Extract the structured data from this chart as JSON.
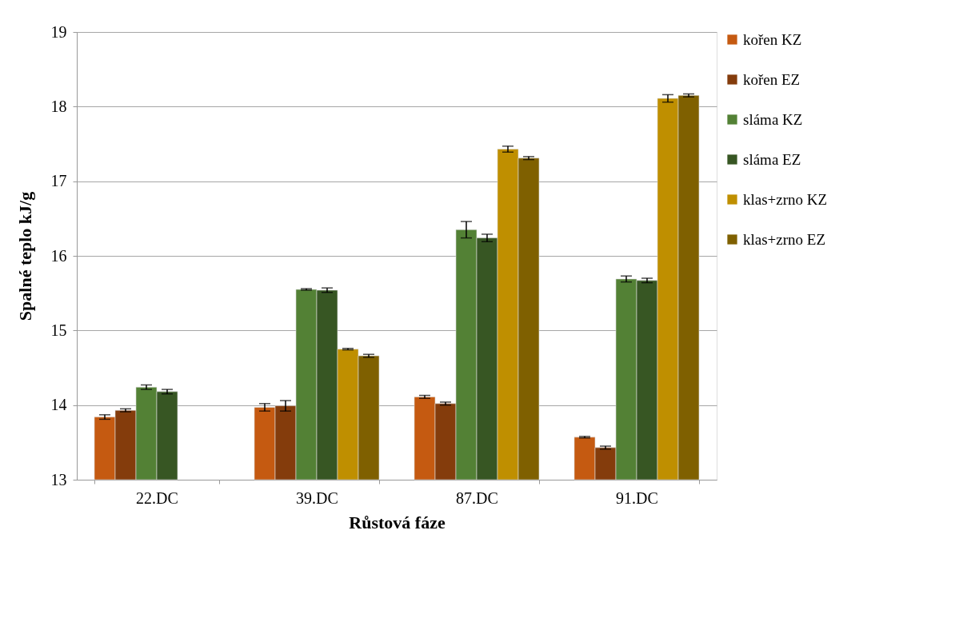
{
  "chart_data": {
    "type": "bar",
    "xlabel": "Růstová fáze",
    "ylabel": "Spalné teplo kJ/g",
    "categories": [
      "22.DC",
      "39.DC",
      "87.DC",
      "91.DC"
    ],
    "series": [
      {
        "name": "kořen KZ",
        "color": "#c55a11",
        "values": [
          13.84,
          13.97,
          14.11,
          13.57
        ],
        "errors": [
          0.03,
          0.05,
          0.02,
          0.01
        ]
      },
      {
        "name": "kořen EZ",
        "color": "#843c0c",
        "values": [
          13.93,
          13.99,
          14.02,
          13.43
        ],
        "errors": [
          0.02,
          0.07,
          0.02,
          0.02
        ]
      },
      {
        "name": "sláma KZ",
        "color": "#538135",
        "values": [
          14.24,
          15.55,
          16.35,
          15.69
        ],
        "errors": [
          0.03,
          0.01,
          0.11,
          0.04
        ]
      },
      {
        "name": "sláma EZ",
        "color": "#375623",
        "values": [
          14.18,
          15.54,
          16.24,
          15.67
        ],
        "errors": [
          0.03,
          0.03,
          0.05,
          0.03
        ]
      },
      {
        "name": "klas+zrno KZ",
        "color": "#bf8f00",
        "values": [
          null,
          14.75,
          17.43,
          18.11
        ],
        "errors": [
          null,
          0.01,
          0.04,
          0.05
        ]
      },
      {
        "name": "klas+zrno EZ",
        "color": "#7f6000",
        "values": [
          null,
          14.66,
          17.31,
          18.15
        ],
        "errors": [
          null,
          0.02,
          0.02,
          0.02
        ]
      }
    ],
    "ylim": [
      13,
      19
    ],
    "yticks": [
      13,
      14,
      15,
      16,
      17,
      18,
      19
    ],
    "grid": "y",
    "legend": "right"
  }
}
